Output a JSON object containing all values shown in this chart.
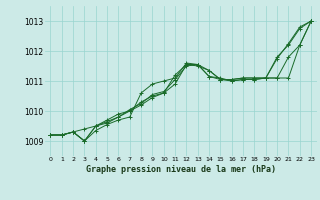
{
  "bg_color": "#cceae7",
  "grid_color": "#99d5d0",
  "line_color": "#1a6b2a",
  "title": "Graphe pression niveau de la mer (hPa)",
  "ylim": [
    1008.5,
    1013.5
  ],
  "yticks": [
    1009,
    1010,
    1011,
    1012,
    1013
  ],
  "series": [
    [
      1009.2,
      1009.2,
      1009.3,
      1009.4,
      1009.5,
      1009.7,
      1009.9,
      1010.0,
      1010.3,
      1010.5,
      1010.6,
      1011.2,
      1011.55,
      1011.5,
      1011.35,
      1011.05,
      1011.05,
      1011.1,
      1011.1,
      1011.1,
      1011.75,
      1012.25,
      1012.8,
      1013.0
    ],
    [
      1009.2,
      1009.2,
      1009.3,
      1009.0,
      1009.5,
      1009.6,
      1009.8,
      1010.05,
      1010.25,
      1010.55,
      1010.65,
      1011.05,
      1011.5,
      1011.55,
      1011.15,
      1011.1,
      1011.0,
      1011.05,
      1011.05,
      1011.1,
      1011.1,
      1011.8,
      1012.2,
      1013.0
    ],
    [
      1009.2,
      1009.2,
      1009.3,
      1009.0,
      1009.5,
      1009.65,
      1009.8,
      1010.0,
      1010.2,
      1010.45,
      1010.6,
      1010.9,
      1011.55,
      1011.55,
      1011.15,
      1011.05,
      1011.0,
      1011.05,
      1011.05,
      1011.1,
      1011.1,
      1011.1,
      1012.2,
      1013.0
    ],
    [
      1009.2,
      1009.2,
      1009.3,
      1009.0,
      1009.35,
      1009.55,
      1009.7,
      1009.8,
      1010.6,
      1010.9,
      1011.0,
      1011.1,
      1011.6,
      1011.55,
      1011.35,
      1011.05,
      1011.05,
      1011.1,
      1011.1,
      1011.1,
      1011.8,
      1012.2,
      1012.75,
      1013.0
    ]
  ]
}
